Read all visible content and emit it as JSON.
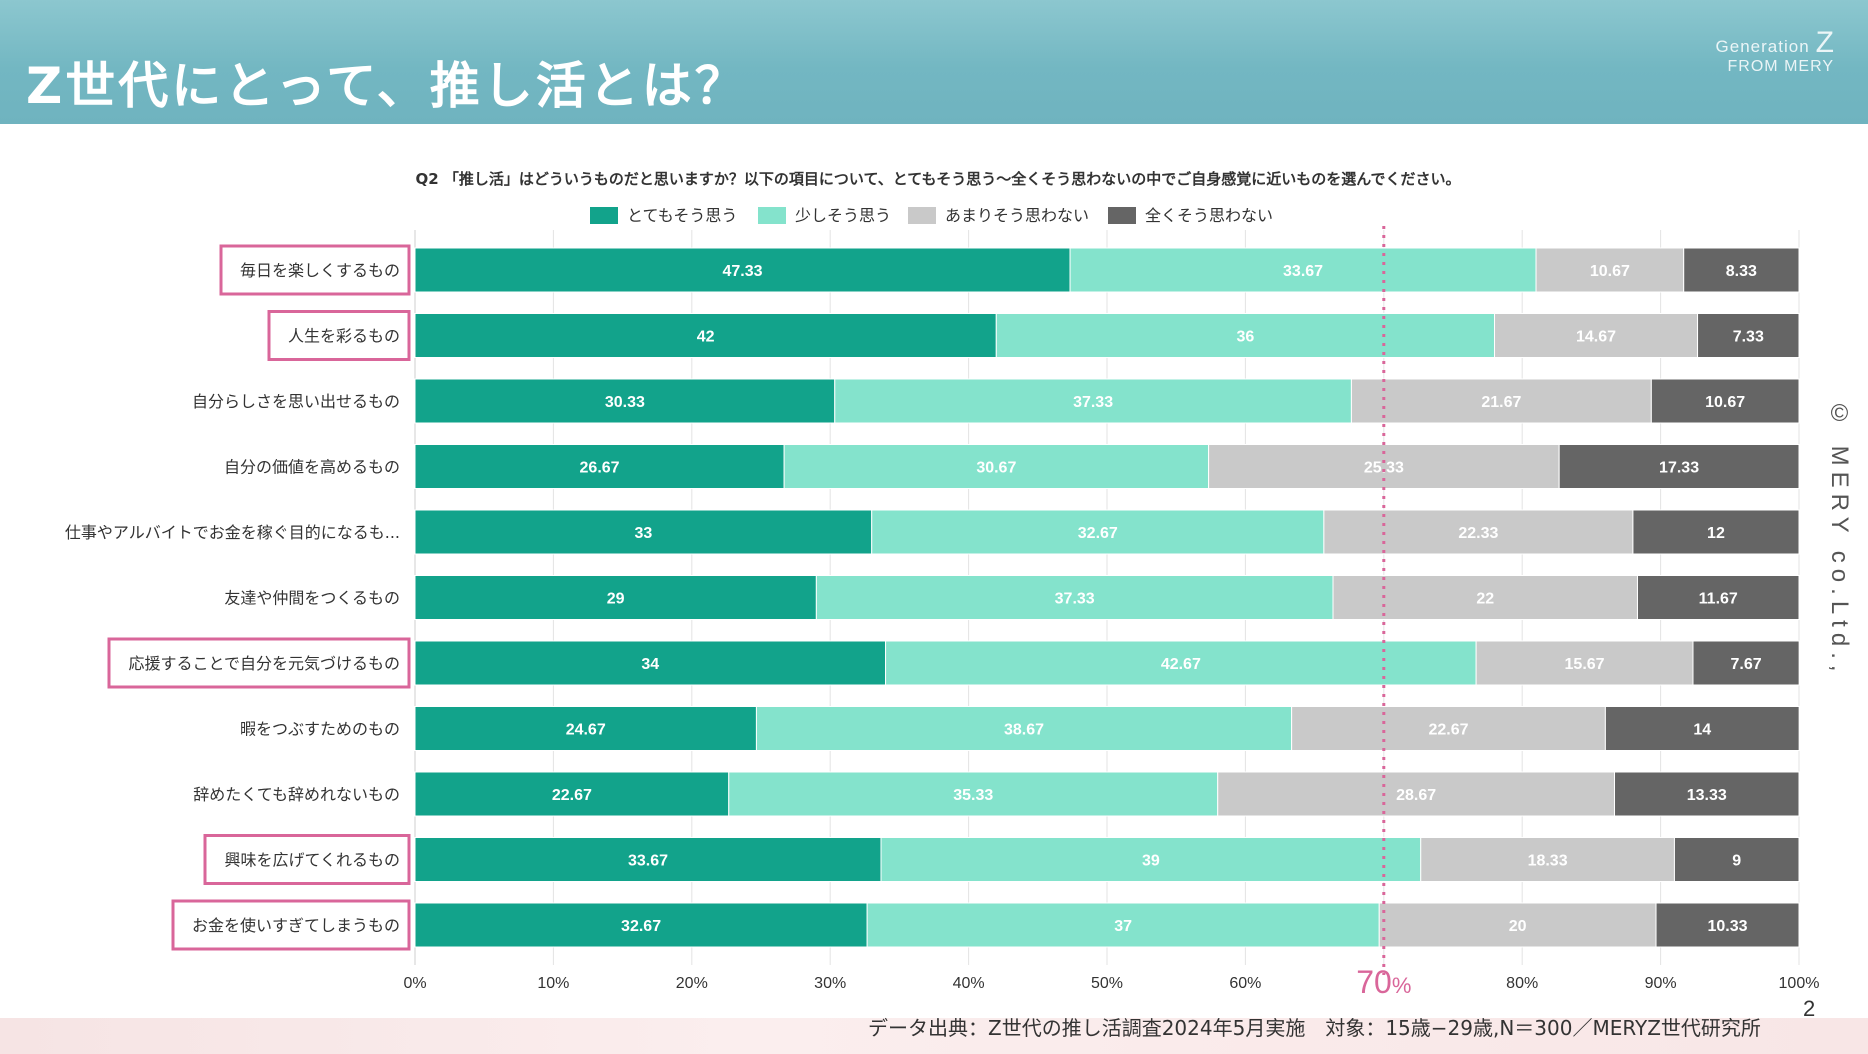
{
  "slide": {
    "title": "Z世代にとって、推し活とは？",
    "brand_generation": "Generation",
    "brand_z": "Z",
    "brand_from": "FROM MERY",
    "copyright": "© MERY co.Ltd.,",
    "source": "データ出典：Z世代の推し活調査2024年5月実施　対象：15歳−29歳,N＝300／MERYZ世代研究所",
    "page_number": "2"
  },
  "colors": {
    "strongly_agree": "#12a38b",
    "somewhat_agree": "#84e3cc",
    "somewhat_disagree": "#c9c9c9",
    "strongly_disagree": "#656565",
    "highlight_box": "#d9669a",
    "reference_line": "#d9669a"
  },
  "chart_data": {
    "type": "bar",
    "orientation": "horizontal",
    "stacked": true,
    "title": "Q2 「推し活」はどういうものだと思いますか？以下の項目について、とてもそう思う〜全くそう思わないの中でご自身感覚に近いものを選んでください。",
    "categories": [
      "毎日を楽しくするもの",
      "人生を彩るもの",
      "自分らしさを思い出せるもの",
      "自分の価値を高めるもの",
      "仕事やアルバイトでお金を稼ぐ目的になるも...",
      "友達や仲間をつくるもの",
      "応援することで自分を元気づけるもの",
      "暇をつぶすためのもの",
      "辞めたくても辞めれないもの",
      "興味を広げてくれるもの",
      "お金を使いすぎてしまうもの"
    ],
    "highlighted_categories": [
      0,
      1,
      6,
      9,
      10
    ],
    "series": [
      {
        "name": "とてもそう思う",
        "color": "#12a38b",
        "values": [
          47.33,
          42,
          30.33,
          26.67,
          33,
          29,
          34,
          24.67,
          22.67,
          33.67,
          32.67
        ]
      },
      {
        "name": "少しそう思う",
        "color": "#84e3cc",
        "values": [
          33.67,
          36,
          37.33,
          30.67,
          32.67,
          37.33,
          42.67,
          38.67,
          35.33,
          39,
          37
        ]
      },
      {
        "name": "あまりそう思わない",
        "color": "#c9c9c9",
        "values": [
          10.67,
          14.67,
          21.67,
          25.33,
          22.33,
          22,
          15.67,
          22.67,
          28.67,
          18.33,
          20
        ]
      },
      {
        "name": "全くそう思わない",
        "color": "#656565",
        "values": [
          8.33,
          7.33,
          10.67,
          17.33,
          12,
          11.67,
          7.67,
          14,
          13.33,
          9,
          10.33
        ]
      }
    ],
    "data_labels": [
      [
        "47.33",
        "42",
        "30.33",
        "26.67",
        "33",
        "29",
        "34",
        "24.67",
        "22.67",
        "33.67",
        "32.67"
      ],
      [
        "33.67",
        "36",
        "37.33",
        "30.67",
        "32.67",
        "37.33",
        "42.67",
        "38.67",
        "35.33",
        "39",
        "37"
      ],
      [
        "10.67",
        "14.67",
        "21.67",
        "25.33",
        "22.33",
        "22",
        "15.67",
        "22.67",
        "28.67",
        "18.33",
        "20"
      ],
      [
        "8.33",
        "7.33",
        "10.67",
        "17.33",
        "12",
        "11.67",
        "7.67",
        "14",
        "13.33",
        "9",
        "10.33"
      ]
    ],
    "x_ticks": [
      0,
      10,
      20,
      30,
      40,
      50,
      60,
      70,
      80,
      90,
      100
    ],
    "x_tick_labels": [
      "0%",
      "10%",
      "20%",
      "30%",
      "40%",
      "50%",
      "60%",
      "",
      "80%",
      "90%",
      "100%"
    ],
    "xlim": [
      0,
      100
    ],
    "reference_line": {
      "value": 70,
      "label_number": "70",
      "label_unit": "%"
    },
    "legend_position": "top",
    "grid": true
  }
}
